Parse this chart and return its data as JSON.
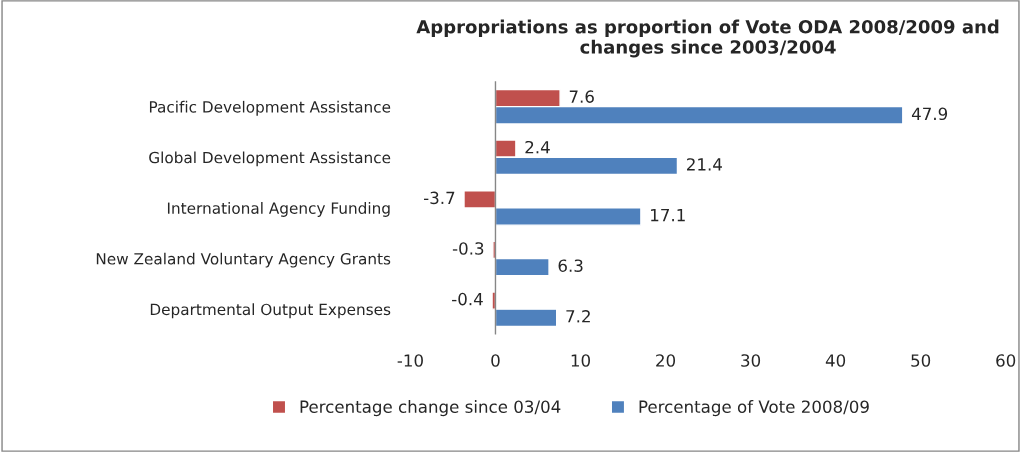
{
  "chart_data": {
    "type": "bar",
    "orientation": "horizontal",
    "title": "Appropriations as proportion of Vote ODA 2008/2009 and changes since 2003/2004",
    "categories": [
      "Pacific Development Assistance",
      "Global Development Assistance",
      "International Agency Funding",
      "New Zealand Voluntary Agency Grants",
      "Departmental Output Expenses"
    ],
    "series": [
      {
        "name": "Percentage change since 03/04",
        "color": "#c0504d",
        "values": [
          7.6,
          2.4,
          -3.7,
          -0.3,
          -0.4
        ]
      },
      {
        "name": "Percentage of Vote 2008/09",
        "color": "#4f81bd",
        "values": [
          47.9,
          21.4,
          17.1,
          6.3,
          7.2
        ]
      }
    ],
    "xlim": [
      -10,
      60
    ],
    "xticks": [
      -10,
      0,
      10,
      20,
      30,
      40,
      50,
      60
    ],
    "grid": false,
    "legend": "bottom",
    "data_labels": true,
    "ref_lines": [
      {
        "axis": "x",
        "value": 0,
        "color": "#868686"
      }
    ]
  }
}
